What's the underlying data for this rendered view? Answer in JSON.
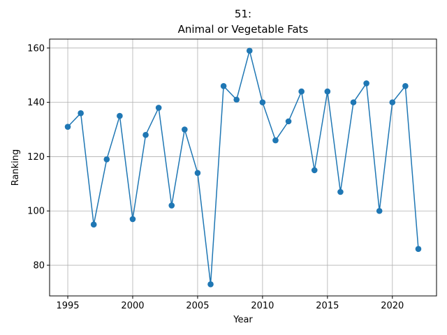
{
  "chart_data": {
    "type": "line",
    "title_line1": "51:",
    "title_line2": "Animal or Vegetable Fats",
    "xlabel": "Year",
    "ylabel": "Ranking",
    "xlim": [
      1993.6,
      2023.4
    ],
    "ylim": [
      68.7,
      163.3
    ],
    "xticks": [
      1995,
      2000,
      2005,
      2010,
      2015,
      2020
    ],
    "yticks": [
      80,
      100,
      120,
      140,
      160
    ],
    "grid": true,
    "color": "#1f77b4",
    "marker": "circle",
    "x": [
      1995,
      1996,
      1997,
      1998,
      1999,
      2000,
      2001,
      2002,
      2003,
      2004,
      2005,
      2006,
      2007,
      2008,
      2009,
      2010,
      2011,
      2012,
      2013,
      2014,
      2015,
      2016,
      2017,
      2018,
      2019,
      2020,
      2021,
      2022
    ],
    "y": [
      131,
      136,
      95,
      119,
      135,
      97,
      128,
      138,
      102,
      130,
      114,
      73,
      146,
      141,
      159,
      140,
      126,
      133,
      144,
      115,
      144,
      107,
      140,
      147,
      100,
      140,
      146,
      86
    ]
  }
}
